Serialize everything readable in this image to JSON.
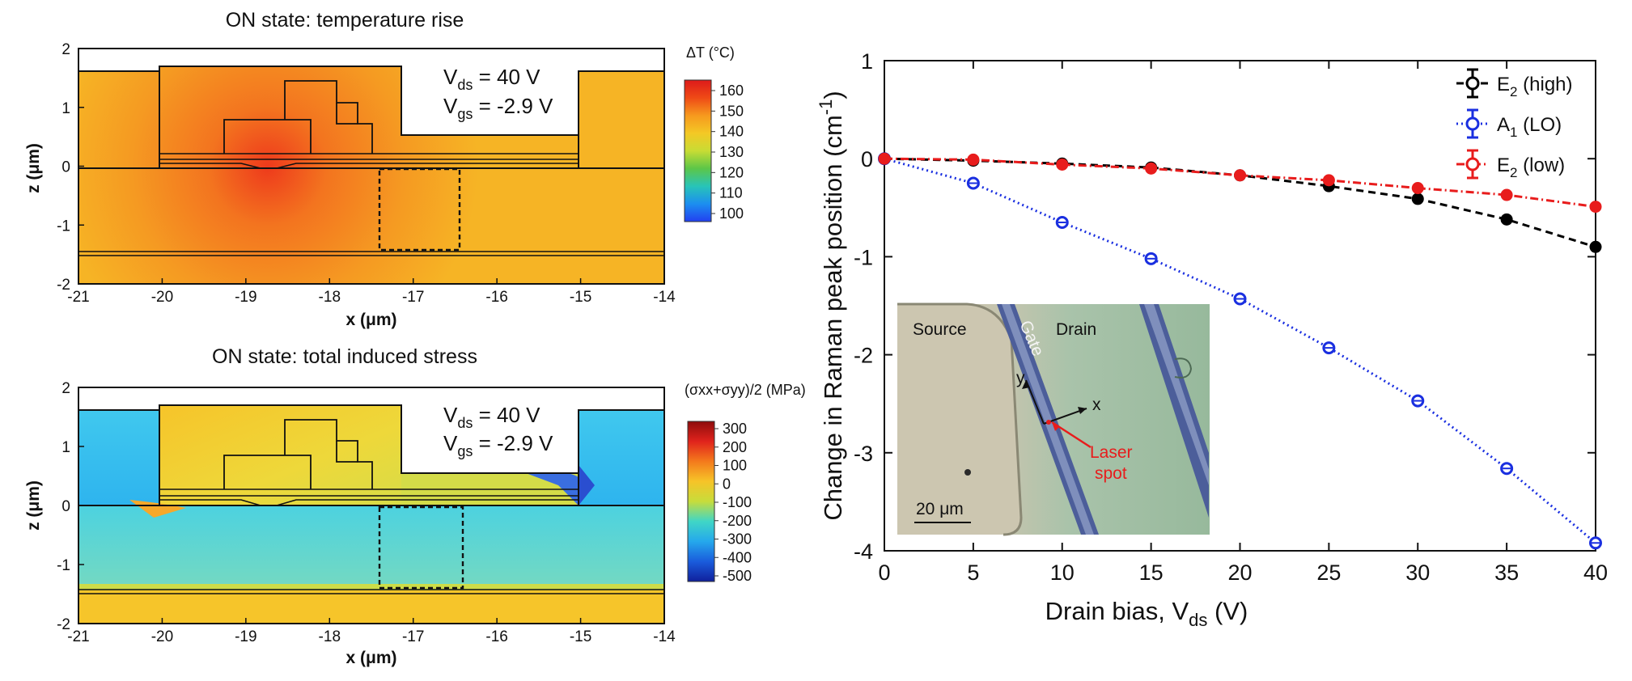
{
  "panels": {
    "top": {
      "title": "ON state: temperature rise",
      "colorbar_title": "ΔT (°C)",
      "colorbar_ticks": [
        "160",
        "150",
        "140",
        "130",
        "120",
        "110",
        "100"
      ],
      "colorbar_colors": [
        "#dd1a1a",
        "#ef4a16",
        "#f6991e",
        "#f4c825",
        "#c8dc34",
        "#5cc648",
        "#28c4b8",
        "#1c8ef0",
        "#2240f0"
      ],
      "field_colors": {
        "hot": "#ee3a1c",
        "warm": "#f59a22",
        "ambient": "#f6b425"
      }
    },
    "bottom": {
      "title": "ON state: total induced stress",
      "colorbar_title": "(σxx+σyy)/2 (MPa)",
      "colorbar_ticks": [
        "300",
        "200",
        "100",
        "0",
        "-100",
        "-200",
        "-300",
        "-400",
        "-500"
      ],
      "colorbar_colors": [
        "#8e0c0c",
        "#e0231c",
        "#f47a1c",
        "#f6c428",
        "#c7dc3b",
        "#40d6c6",
        "#25a8ec",
        "#1a5cdc",
        "#10209c"
      ],
      "field_colors": {
        "tensile": "#f6c52a",
        "compressive": "#3cd0ee",
        "mid": "#58d8e4"
      }
    },
    "shared": {
      "xticks": [
        "-21",
        "-20",
        "-19",
        "-18",
        "-17",
        "-16",
        "-15",
        "-14"
      ],
      "zticks": [
        "2",
        "1",
        "0",
        "-1",
        "-2"
      ],
      "xlabel": "x (μm)",
      "zlabel": "z (μm)",
      "vds_label": "V",
      "vds_sub": "ds",
      "vds_value": " = 40 V",
      "vgs_label": "V",
      "vgs_sub": "gs",
      "vgs_value": " = -2.9 V"
    }
  },
  "inset": {
    "source": "Source",
    "gate": "Gate",
    "drain": "Drain",
    "axis_y": "y",
    "axis_x": "x",
    "laser_line1": "Laser",
    "laser_line2": "spot",
    "scale": "20 μm"
  },
  "chart_data": {
    "type": "line",
    "xlabel": "Drain bias, V",
    "xlabel_sub": "ds",
    "xlabel_unit": " (V)",
    "ylabel": "Change in Raman peak position (cm",
    "ylabel_sup": "-1",
    "ylabel_end": ")",
    "xlim": [
      0,
      40
    ],
    "ylim": [
      -4,
      1
    ],
    "xticks": [
      0,
      5,
      10,
      15,
      20,
      25,
      30,
      35,
      40
    ],
    "yticks": [
      1,
      0,
      -1,
      -2,
      -3,
      -4
    ],
    "legend_position": "top-right",
    "x": [
      0,
      5,
      10,
      15,
      20,
      25,
      30,
      35,
      40
    ],
    "series": [
      {
        "name": "E",
        "sub": "2",
        "suffix": " (high)",
        "color": "#000000",
        "dash": "9 6",
        "marker": "filled",
        "values": [
          0,
          -0.02,
          -0.05,
          -0.09,
          -0.17,
          -0.28,
          -0.41,
          -0.62,
          -0.9
        ]
      },
      {
        "name": "A",
        "sub": "1",
        "suffix": " (LO)",
        "color": "#1a2fe0",
        "dash": "2 4",
        "marker": "open",
        "values": [
          0,
          -0.25,
          -0.65,
          -1.02,
          -1.43,
          -1.93,
          -2.47,
          -3.16,
          -3.92
        ]
      },
      {
        "name": "E",
        "sub": "2",
        "suffix": " (low)",
        "color": "#e81c1c",
        "dash": "10 4 2 4",
        "marker": "filled",
        "values": [
          0,
          -0.01,
          -0.06,
          -0.1,
          -0.17,
          -0.22,
          -0.3,
          -0.37,
          -0.49
        ]
      }
    ]
  }
}
